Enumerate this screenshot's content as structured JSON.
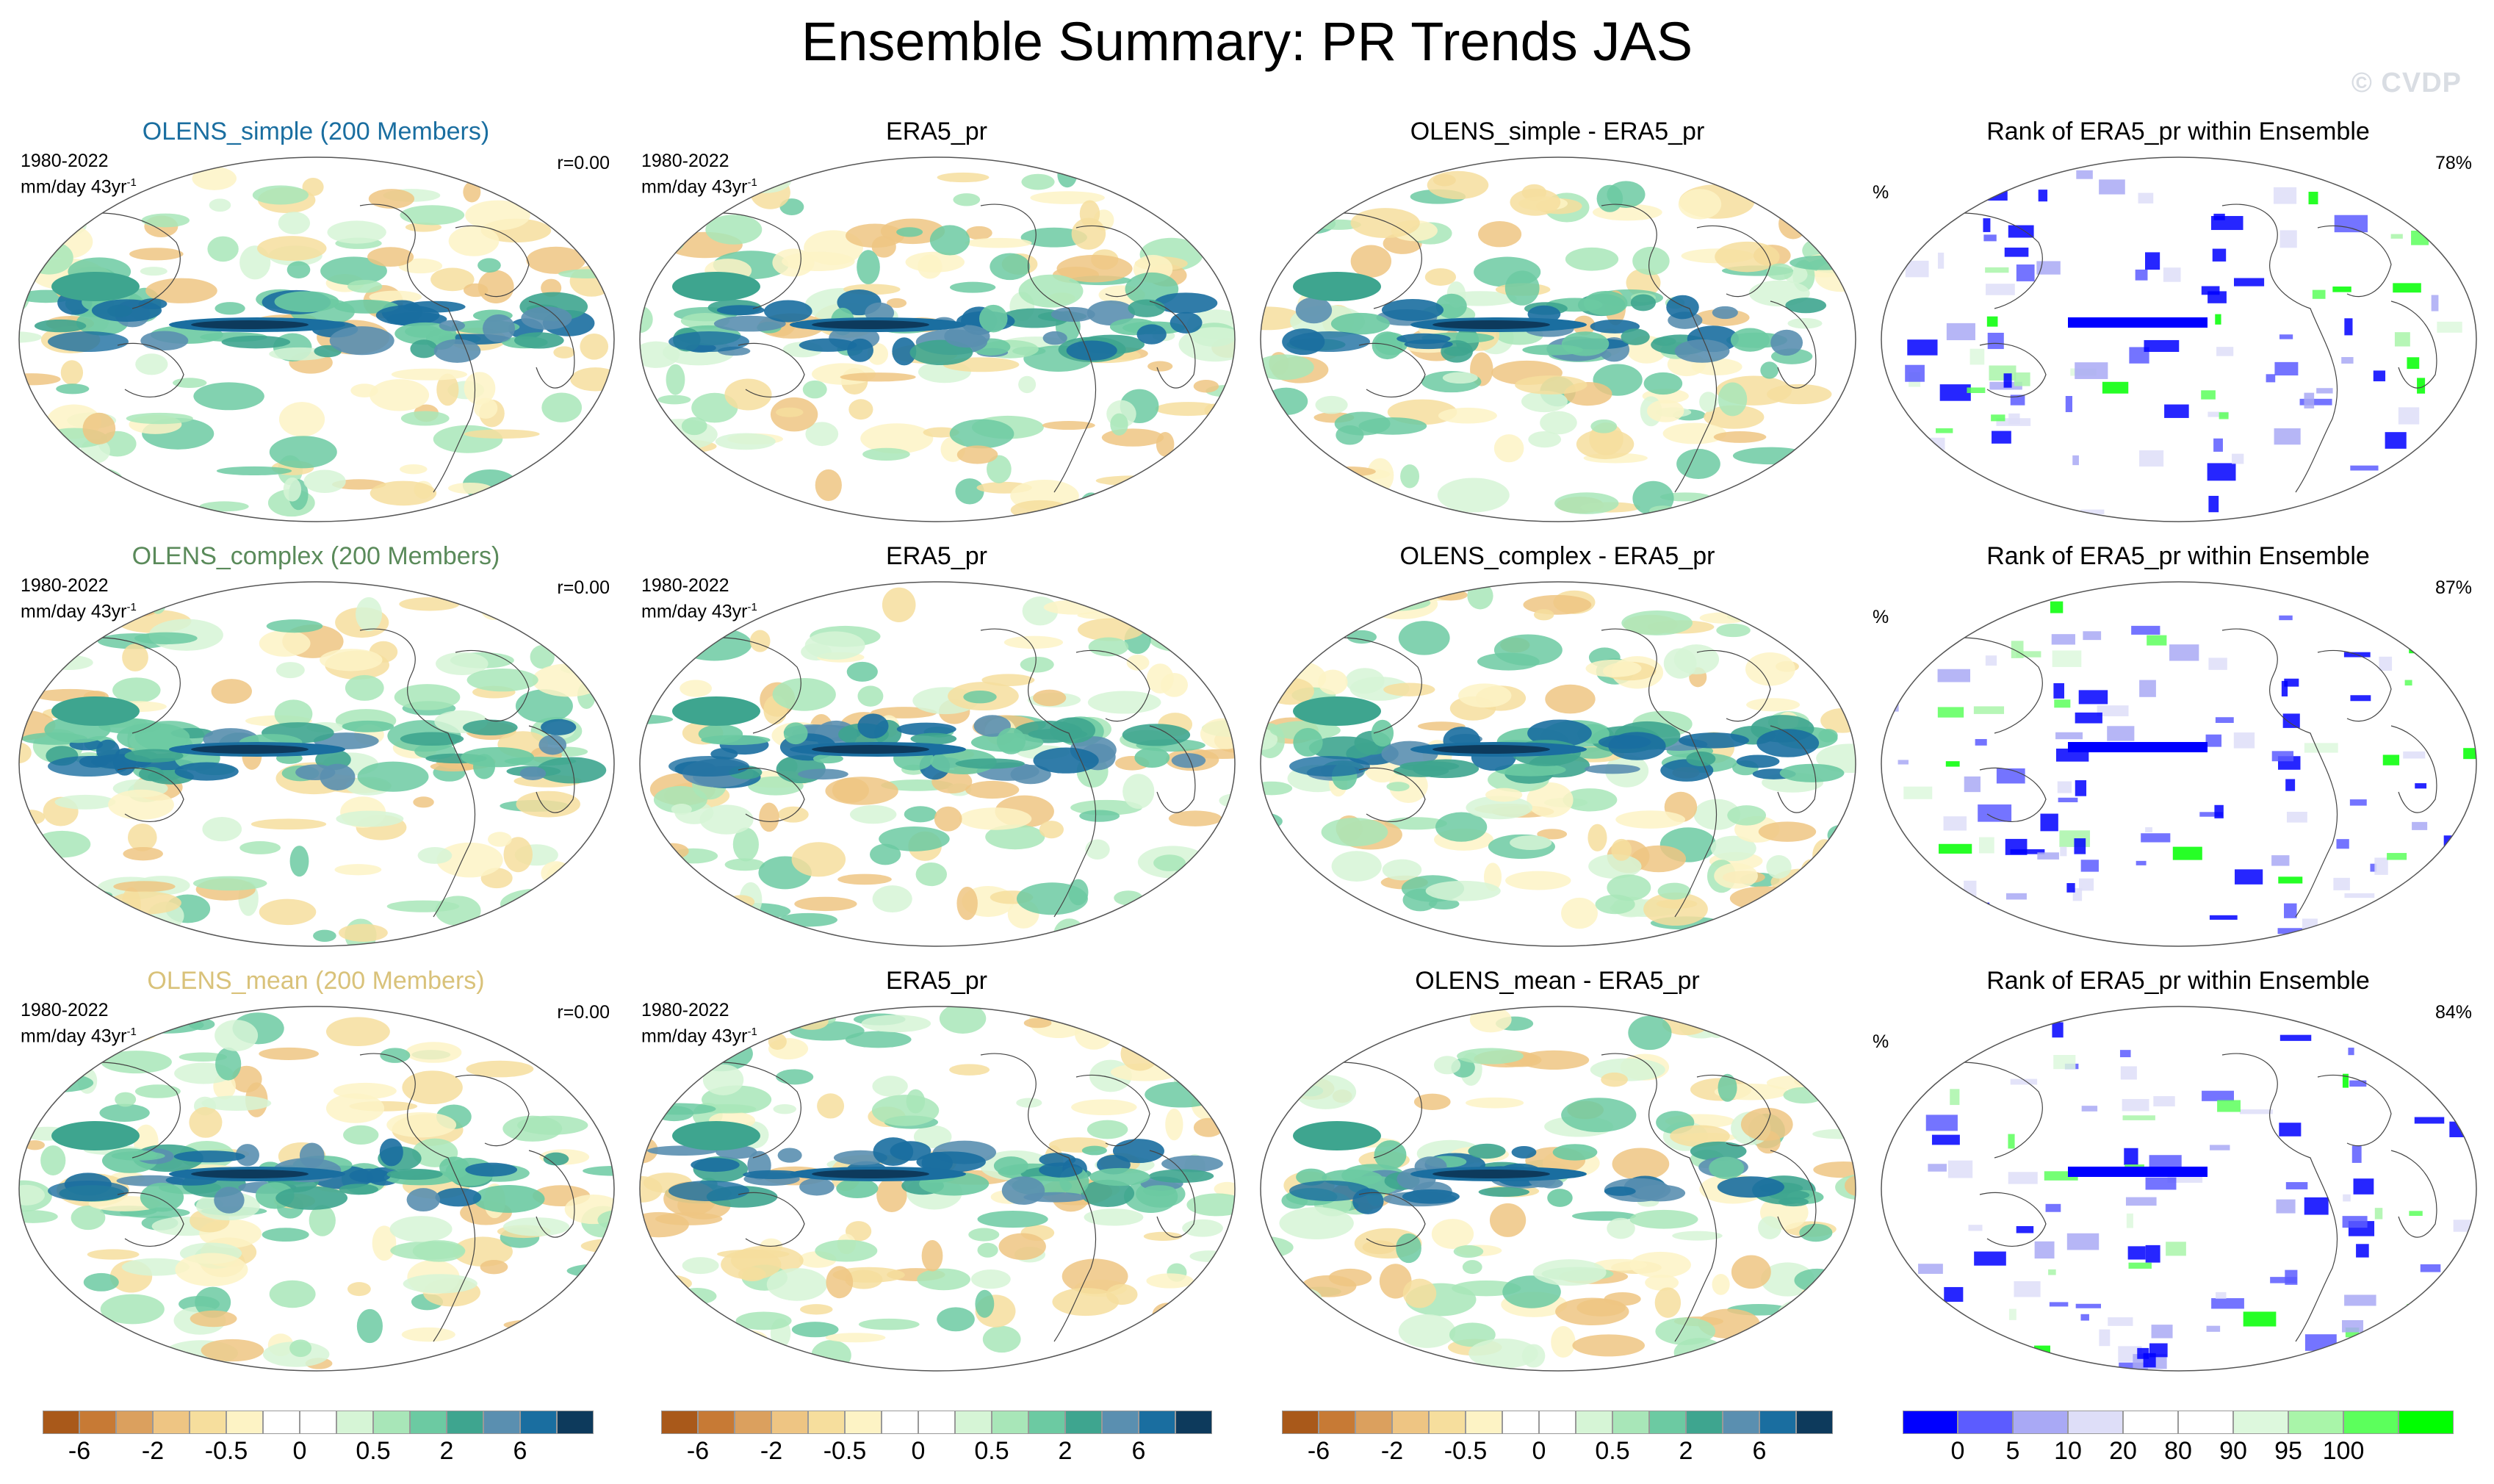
{
  "title": "Ensemble Summary: PR Trends JAS",
  "watermark": "© CVDP",
  "panels": [
    {
      "title": "OLENS_simple (200 Members)",
      "title_color": "#1a6ea0",
      "period": "1980-2022",
      "units": "mm/day 43yr",
      "units_sup": "-1",
      "r": "r=0.00"
    },
    {
      "title": "ERA5_pr",
      "title_color": "#000000",
      "period": "1980-2022",
      "units": "mm/day 43yr",
      "units_sup": "-1"
    },
    {
      "title": "OLENS_simple - ERA5_pr",
      "title_color": "#000000"
    },
    {
      "title": "Rank of ERA5_pr within Ensemble",
      "title_color": "#000000",
      "pct_label": "%",
      "pct_value": "78%"
    },
    {
      "title": "OLENS_complex (200 Members)",
      "title_color": "#5a8a5a",
      "period": "1980-2022",
      "units": "mm/day 43yr",
      "units_sup": "-1",
      "r": "r=0.00"
    },
    {
      "title": "ERA5_pr",
      "title_color": "#000000",
      "period": "1980-2022",
      "units": "mm/day 43yr",
      "units_sup": "-1"
    },
    {
      "title": "OLENS_complex - ERA5_pr",
      "title_color": "#000000"
    },
    {
      "title": "Rank of ERA5_pr within Ensemble",
      "title_color": "#000000",
      "pct_label": "%",
      "pct_value": "87%"
    },
    {
      "title": "OLENS_mean (200 Members)",
      "title_color": "#d9c27a",
      "period": "1980-2022",
      "units": "mm/day 43yr",
      "units_sup": "-1",
      "r": "r=0.00"
    },
    {
      "title": "ERA5_pr",
      "title_color": "#000000",
      "period": "1980-2022",
      "units": "mm/day 43yr",
      "units_sup": "-1"
    },
    {
      "title": "OLENS_mean - ERA5_pr",
      "title_color": "#000000"
    },
    {
      "title": "Rank of ERA5_pr within Ensemble",
      "title_color": "#000000",
      "pct_label": "%",
      "pct_value": "84%"
    }
  ],
  "colorbar_trend": {
    "colors": [
      "#a9591a",
      "#c77a35",
      "#dba05e",
      "#eec583",
      "#f6de9d",
      "#fdf3c5",
      "#ffffff",
      "#ffffff",
      "#d6f5d6",
      "#a8e6b8",
      "#6ccaa2",
      "#3ea58f",
      "#5a8fb0",
      "#1a6ea0",
      "#0d3a5c"
    ],
    "tick_labels": [
      "-6",
      "-2",
      "-0.5",
      "0",
      "0.5",
      "2",
      "6"
    ]
  },
  "colorbar_rank": {
    "colors": [
      "#0000ff",
      "#5c5cff",
      "#a9a9f5",
      "#dedef8",
      "#ffffff",
      "#ffffff",
      "#ddf8dd",
      "#a9f5a9",
      "#5cff5c",
      "#00ff00"
    ],
    "tick_labels": [
      "0",
      "5",
      "10",
      "20",
      "80",
      "90",
      "95",
      "100"
    ]
  }
}
